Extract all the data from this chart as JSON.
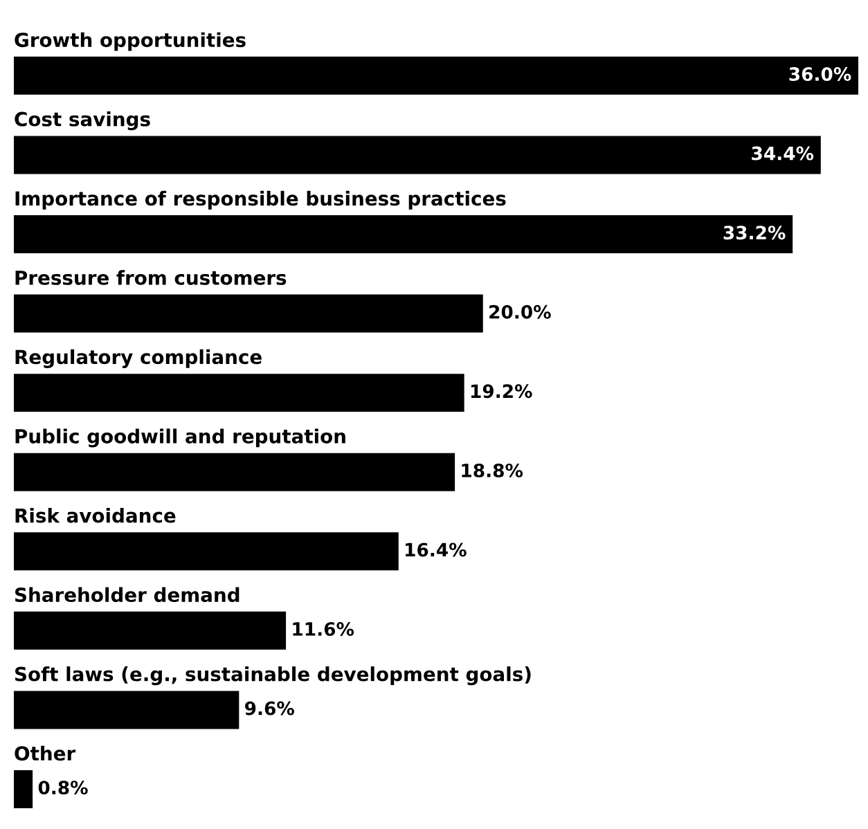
{
  "chart_data": {
    "type": "bar",
    "orientation": "horizontal",
    "categories": [
      "Growth opportunities",
      "Cost savings",
      "Importance of responsible business practices",
      "Pressure from customers",
      "Regulatory compliance",
      "Public goodwill and reputation",
      "Risk avoidance",
      "Shareholder demand",
      "Soft laws (e.g., sustainable development goals)",
      "Other"
    ],
    "values": [
      36.0,
      34.4,
      33.2,
      20.0,
      19.2,
      18.8,
      16.4,
      11.6,
      9.6,
      0.8
    ],
    "value_labels": [
      "36.0%",
      "34.4%",
      "33.2%",
      "20.0%",
      "19.2%",
      "18.8%",
      "16.4%",
      "11.6%",
      "9.6%",
      "0.8%"
    ],
    "color": "#000000"
  }
}
